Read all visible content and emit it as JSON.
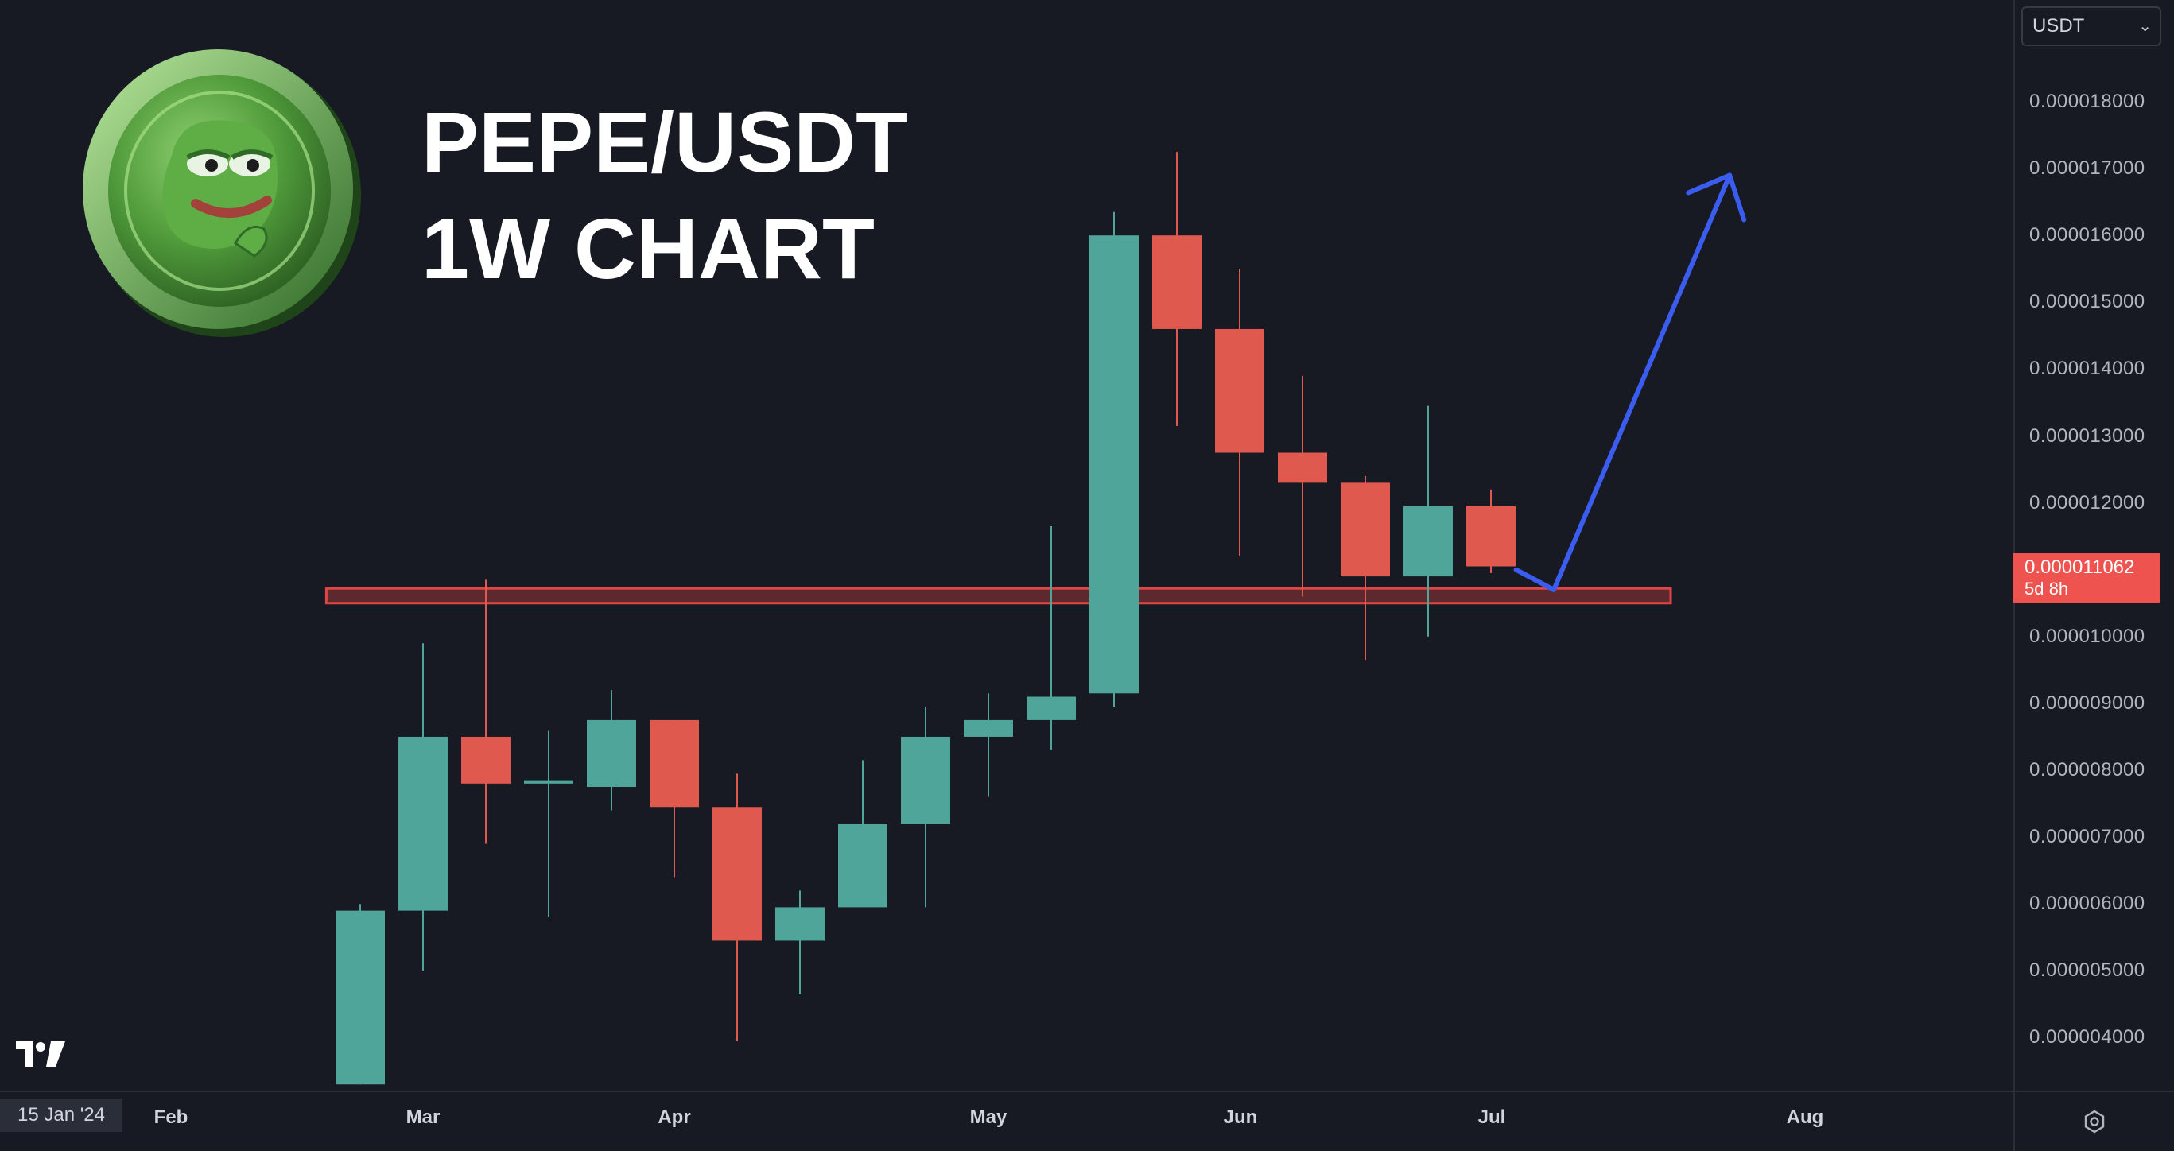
{
  "title": {
    "line1": "PEPE/USDT",
    "line2": "1W CHART"
  },
  "currency_select": {
    "value": "USDT"
  },
  "current_price": {
    "value": "0.000011062",
    "countdown": "5d 8h"
  },
  "x_axis": {
    "cursor_date": "15 Jan '24",
    "labels": [
      "Feb",
      "Mar",
      "Apr",
      "May",
      "Jun",
      "Jul",
      "Aug"
    ]
  },
  "icons": {
    "logo": "pepe-coin-logo",
    "watermark": "tradingview-logo-icon",
    "settings": "gear-icon",
    "dropdown": "chevron-down-icon"
  },
  "colors": {
    "up": "#4fa59a",
    "down": "#e0594f",
    "arrow": "#3a5df0",
    "zone": "#e04545",
    "background": "#171923"
  },
  "chart_data": {
    "type": "candlestick",
    "timeframe": "1W",
    "ylim": [
      3.3e-06,
      1.94e-05
    ],
    "yticks": [
      "0.000018000",
      "0.000017000",
      "0.000016000",
      "0.000015000",
      "0.000014000",
      "0.000013000",
      "0.000012000",
      "0.000011062",
      "0.000010000",
      "0.000009000",
      "0.000008000",
      "0.000007000",
      "0.000006000",
      "0.000005000",
      "0.000004000"
    ],
    "candles": [
      {
        "x": 0,
        "open": 3.3e-06,
        "high": 6e-06,
        "low": 3.3e-06,
        "close": 5.9e-06
      },
      {
        "x": 1,
        "open": 5.9e-06,
        "high": 9.9e-06,
        "low": 5e-06,
        "close": 8.5e-06
      },
      {
        "x": 2,
        "open": 8.5e-06,
        "high": 1.085e-05,
        "low": 6.9e-06,
        "close": 7.8e-06
      },
      {
        "x": 3,
        "open": 7.8e-06,
        "high": 8.6e-06,
        "low": 5.8e-06,
        "close": 7.85e-06
      },
      {
        "x": 4,
        "open": 7.75e-06,
        "high": 9.2e-06,
        "low": 7.4e-06,
        "close": 8.75e-06
      },
      {
        "x": 5,
        "open": 8.75e-06,
        "high": 8.75e-06,
        "low": 6.4e-06,
        "close": 7.45e-06
      },
      {
        "x": 6,
        "open": 7.45e-06,
        "high": 7.95e-06,
        "low": 3.95e-06,
        "close": 5.45e-06
      },
      {
        "x": 7,
        "open": 5.45e-06,
        "high": 6.2e-06,
        "low": 4.65e-06,
        "close": 5.95e-06
      },
      {
        "x": 8,
        "open": 5.95e-06,
        "high": 8.15e-06,
        "low": 5.95e-06,
        "close": 7.2e-06
      },
      {
        "x": 9,
        "open": 7.2e-06,
        "high": 8.95e-06,
        "low": 5.95e-06,
        "close": 8.5e-06
      },
      {
        "x": 10,
        "open": 8.5e-06,
        "high": 9.15e-06,
        "low": 7.6e-06,
        "close": 8.75e-06
      },
      {
        "x": 11,
        "open": 8.75e-06,
        "high": 1.165e-05,
        "low": 8.3e-06,
        "close": 9.1e-06
      },
      {
        "x": 12,
        "open": 9.15e-06,
        "high": 1.635e-05,
        "low": 8.95e-06,
        "close": 1.6e-05
      },
      {
        "x": 13,
        "open": 1.6e-05,
        "high": 1.725e-05,
        "low": 1.315e-05,
        "close": 1.46e-05
      },
      {
        "x": 14,
        "open": 1.46e-05,
        "high": 1.55e-05,
        "low": 1.12e-05,
        "close": 1.275e-05
      },
      {
        "x": 15,
        "open": 1.275e-05,
        "high": 1.39e-05,
        "low": 1.06e-05,
        "close": 1.23e-05
      },
      {
        "x": 16,
        "open": 1.23e-05,
        "high": 1.24e-05,
        "low": 9.65e-06,
        "close": 1.09e-05
      },
      {
        "x": 17,
        "open": 1.09e-05,
        "high": 1.345e-05,
        "low": 1e-05,
        "close": 1.195e-05
      },
      {
        "x": 18,
        "open": 1.195e-05,
        "high": 1.22e-05,
        "low": 1.095e-05,
        "close": 1.105e-05
      }
    ],
    "support_zone": {
      "from_x": -0.4,
      "to_x": 21.0,
      "low": 1.05e-05,
      "high": 1.072e-05
    },
    "projection_arrow": [
      {
        "x": 18.4,
        "y": 1.1e-05
      },
      {
        "x": 19.0,
        "y": 1.07e-05
      },
      {
        "x": 21.8,
        "y": 1.69e-05
      }
    ]
  }
}
